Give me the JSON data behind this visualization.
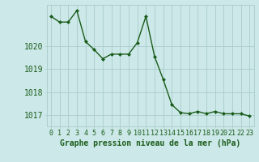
{
  "x": [
    0,
    1,
    2,
    3,
    4,
    5,
    6,
    7,
    8,
    9,
    10,
    11,
    12,
    13,
    14,
    15,
    16,
    17,
    18,
    19,
    20,
    21,
    22,
    23
  ],
  "y": [
    1021.3,
    1021.05,
    1021.05,
    1021.55,
    1020.2,
    1019.85,
    1019.45,
    1019.65,
    1019.65,
    1019.65,
    1020.15,
    1021.3,
    1019.55,
    1018.55,
    1017.45,
    1017.1,
    1017.05,
    1017.15,
    1017.05,
    1017.15,
    1017.05,
    1017.05,
    1017.05,
    1016.95
  ],
  "line_color": "#1a5c1a",
  "marker": "D",
  "marker_size": 2.0,
  "bg_color": "#cce8e8",
  "grid_color": "#aacccc",
  "ylabel_ticks": [
    1017,
    1018,
    1019,
    1020
  ],
  "ylim": [
    1016.5,
    1021.8
  ],
  "xlim": [
    -0.5,
    23.5
  ],
  "xlabel": "Graphe pression niveau de la mer (hPa)",
  "xlabel_fontsize": 7,
  "tick_fontsize": 6,
  "line_width": 1.0
}
